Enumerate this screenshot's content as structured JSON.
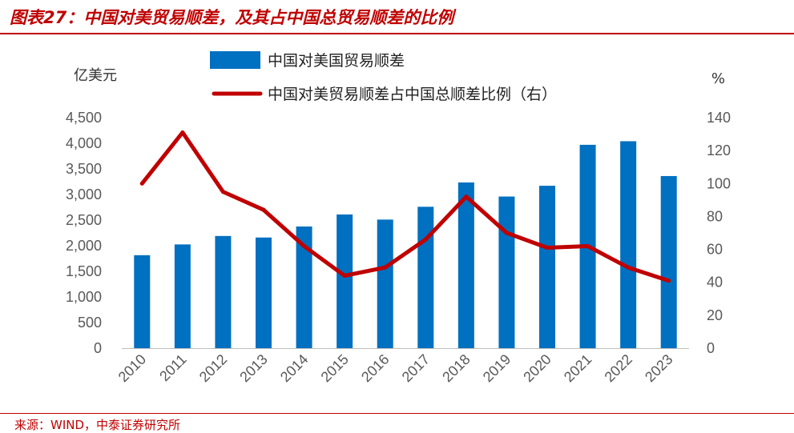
{
  "figure": {
    "title": "图表27：中国对美贸易顺差，及其占中国总贸易顺差的比例",
    "source": "来源：WIND，中泰证券研究所"
  },
  "chart_data": {
    "type": "bar",
    "categories": [
      "2010",
      "2011",
      "2012",
      "2013",
      "2014",
      "2015",
      "2016",
      "2017",
      "2018",
      "2019",
      "2020",
      "2021",
      "2022",
      "2023"
    ],
    "series": [
      {
        "name": "中国对美国贸易顺差",
        "type": "bar",
        "axis": "left",
        "color": "#0070c0",
        "values": [
          1815,
          2025,
          2190,
          2160,
          2375,
          2610,
          2510,
          2760,
          3235,
          2960,
          3170,
          3970,
          4040,
          3360
        ]
      },
      {
        "name": "中国对美贸易顺差占中国总顺差比例（右）",
        "type": "line",
        "axis": "right",
        "color": "#c00000",
        "values": [
          100,
          131,
          95,
          84,
          62,
          44,
          49,
          66,
          92,
          70,
          61,
          62,
          49,
          41
        ]
      }
    ],
    "left_axis": {
      "unit": "亿美元",
      "ylim": [
        0,
        4500
      ],
      "ticks": [
        "0",
        "500",
        "1,000",
        "1,500",
        "2,000",
        "2,500",
        "3,000",
        "3,500",
        "4,000",
        "4,500"
      ]
    },
    "right_axis": {
      "unit": "%",
      "ylim": [
        0,
        140
      ],
      "ticks": [
        "0",
        "20",
        "40",
        "60",
        "80",
        "100",
        "120",
        "140"
      ]
    },
    "legend_placement": "top",
    "grid": false
  }
}
